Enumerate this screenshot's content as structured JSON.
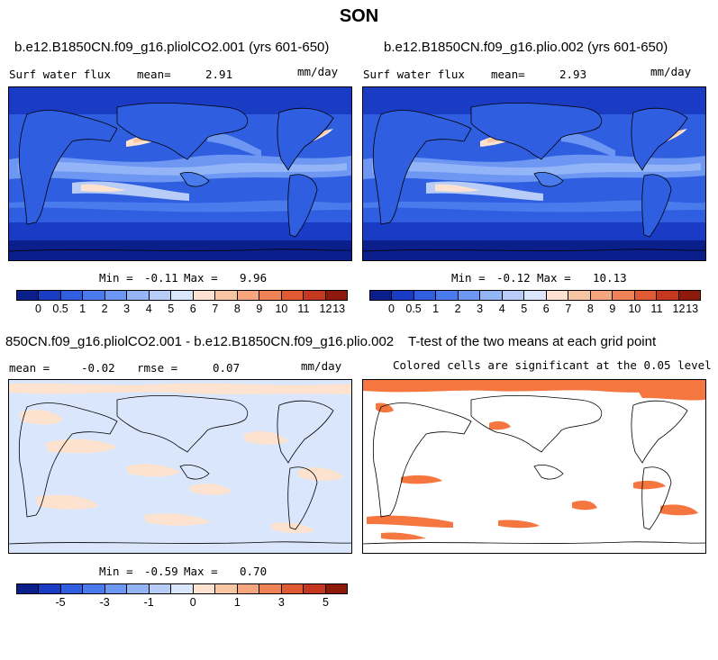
{
  "figure": {
    "season": "SON"
  },
  "panels": {
    "p1": {
      "title": "b.e12.B1850CN.f09_g16.pliolCO2.001 (yrs 601-650)",
      "variable": "Surf water flux",
      "mean_label": "mean=",
      "mean": "2.91",
      "units": "mm/day",
      "min_label": "Min =",
      "min": "-0.11",
      "max_label": "Max =",
      "max": "9.96"
    },
    "p2": {
      "title": "b.e12.B1850CN.f09_g16.plio.002 (yrs 601-650)",
      "variable": "Surf water flux",
      "mean_label": "mean=",
      "mean": "2.93",
      "units": "mm/day",
      "min_label": "Min =",
      "min": "-0.12",
      "max_label": "Max =",
      "max": "10.13"
    },
    "p3": {
      "title": "850CN.f09_g16.pliolCO2.001 - b.e12.B1850CN.f09_g16.plio.002",
      "mean_label": "mean =",
      "mean": "-0.02",
      "rmse_label": "rmse =",
      "rmse": "0.07",
      "units": "mm/day",
      "min_label": "Min =",
      "min": "-0.59",
      "max_label": "Max =",
      "max": "0.70"
    },
    "p4": {
      "title": "T-test of the two means at each grid point",
      "subtitle": "Colored cells are significant at the 0.05 level"
    }
  },
  "colorbars": {
    "abs": {
      "colors": [
        "#0b1f8c",
        "#1a3cc4",
        "#2f5ee0",
        "#4a7bec",
        "#6d97f2",
        "#93b4f6",
        "#b7cdf8",
        "#d9e6fb",
        "#fde3cf",
        "#f9c6a4",
        "#f5a67c",
        "#ef8256",
        "#e05a34",
        "#c5371f",
        "#8e1a0c"
      ],
      "ticks": [
        "0",
        "0.5",
        "1",
        "2",
        "3",
        "4",
        "5",
        "6",
        "7",
        "8",
        "9",
        "10",
        "11",
        "12",
        "13"
      ]
    },
    "diff": {
      "colors": [
        "#0b1f8c",
        "#1a3cc4",
        "#2f5ee0",
        "#4a7bec",
        "#6d97f2",
        "#93b4f6",
        "#b7cdf8",
        "#d9e6fb",
        "#fde3cf",
        "#f9c6a4",
        "#f5a67c",
        "#ef8256",
        "#e05a34",
        "#c5371f",
        "#8e1a0c"
      ],
      "ticks": [
        "-5",
        "-3",
        "-1",
        "0",
        "1",
        "3",
        "5"
      ]
    }
  },
  "colors": {
    "ocean_deep": "#1a3cc4",
    "ocean_mid": "#4a7bec",
    "ocean_light": "#93b4f6",
    "high_precip": "#f9c6a4",
    "diff_bg": "#d9e6fb",
    "diff_pos": "#fde3cf",
    "ttest_sig": "#f5773f"
  }
}
